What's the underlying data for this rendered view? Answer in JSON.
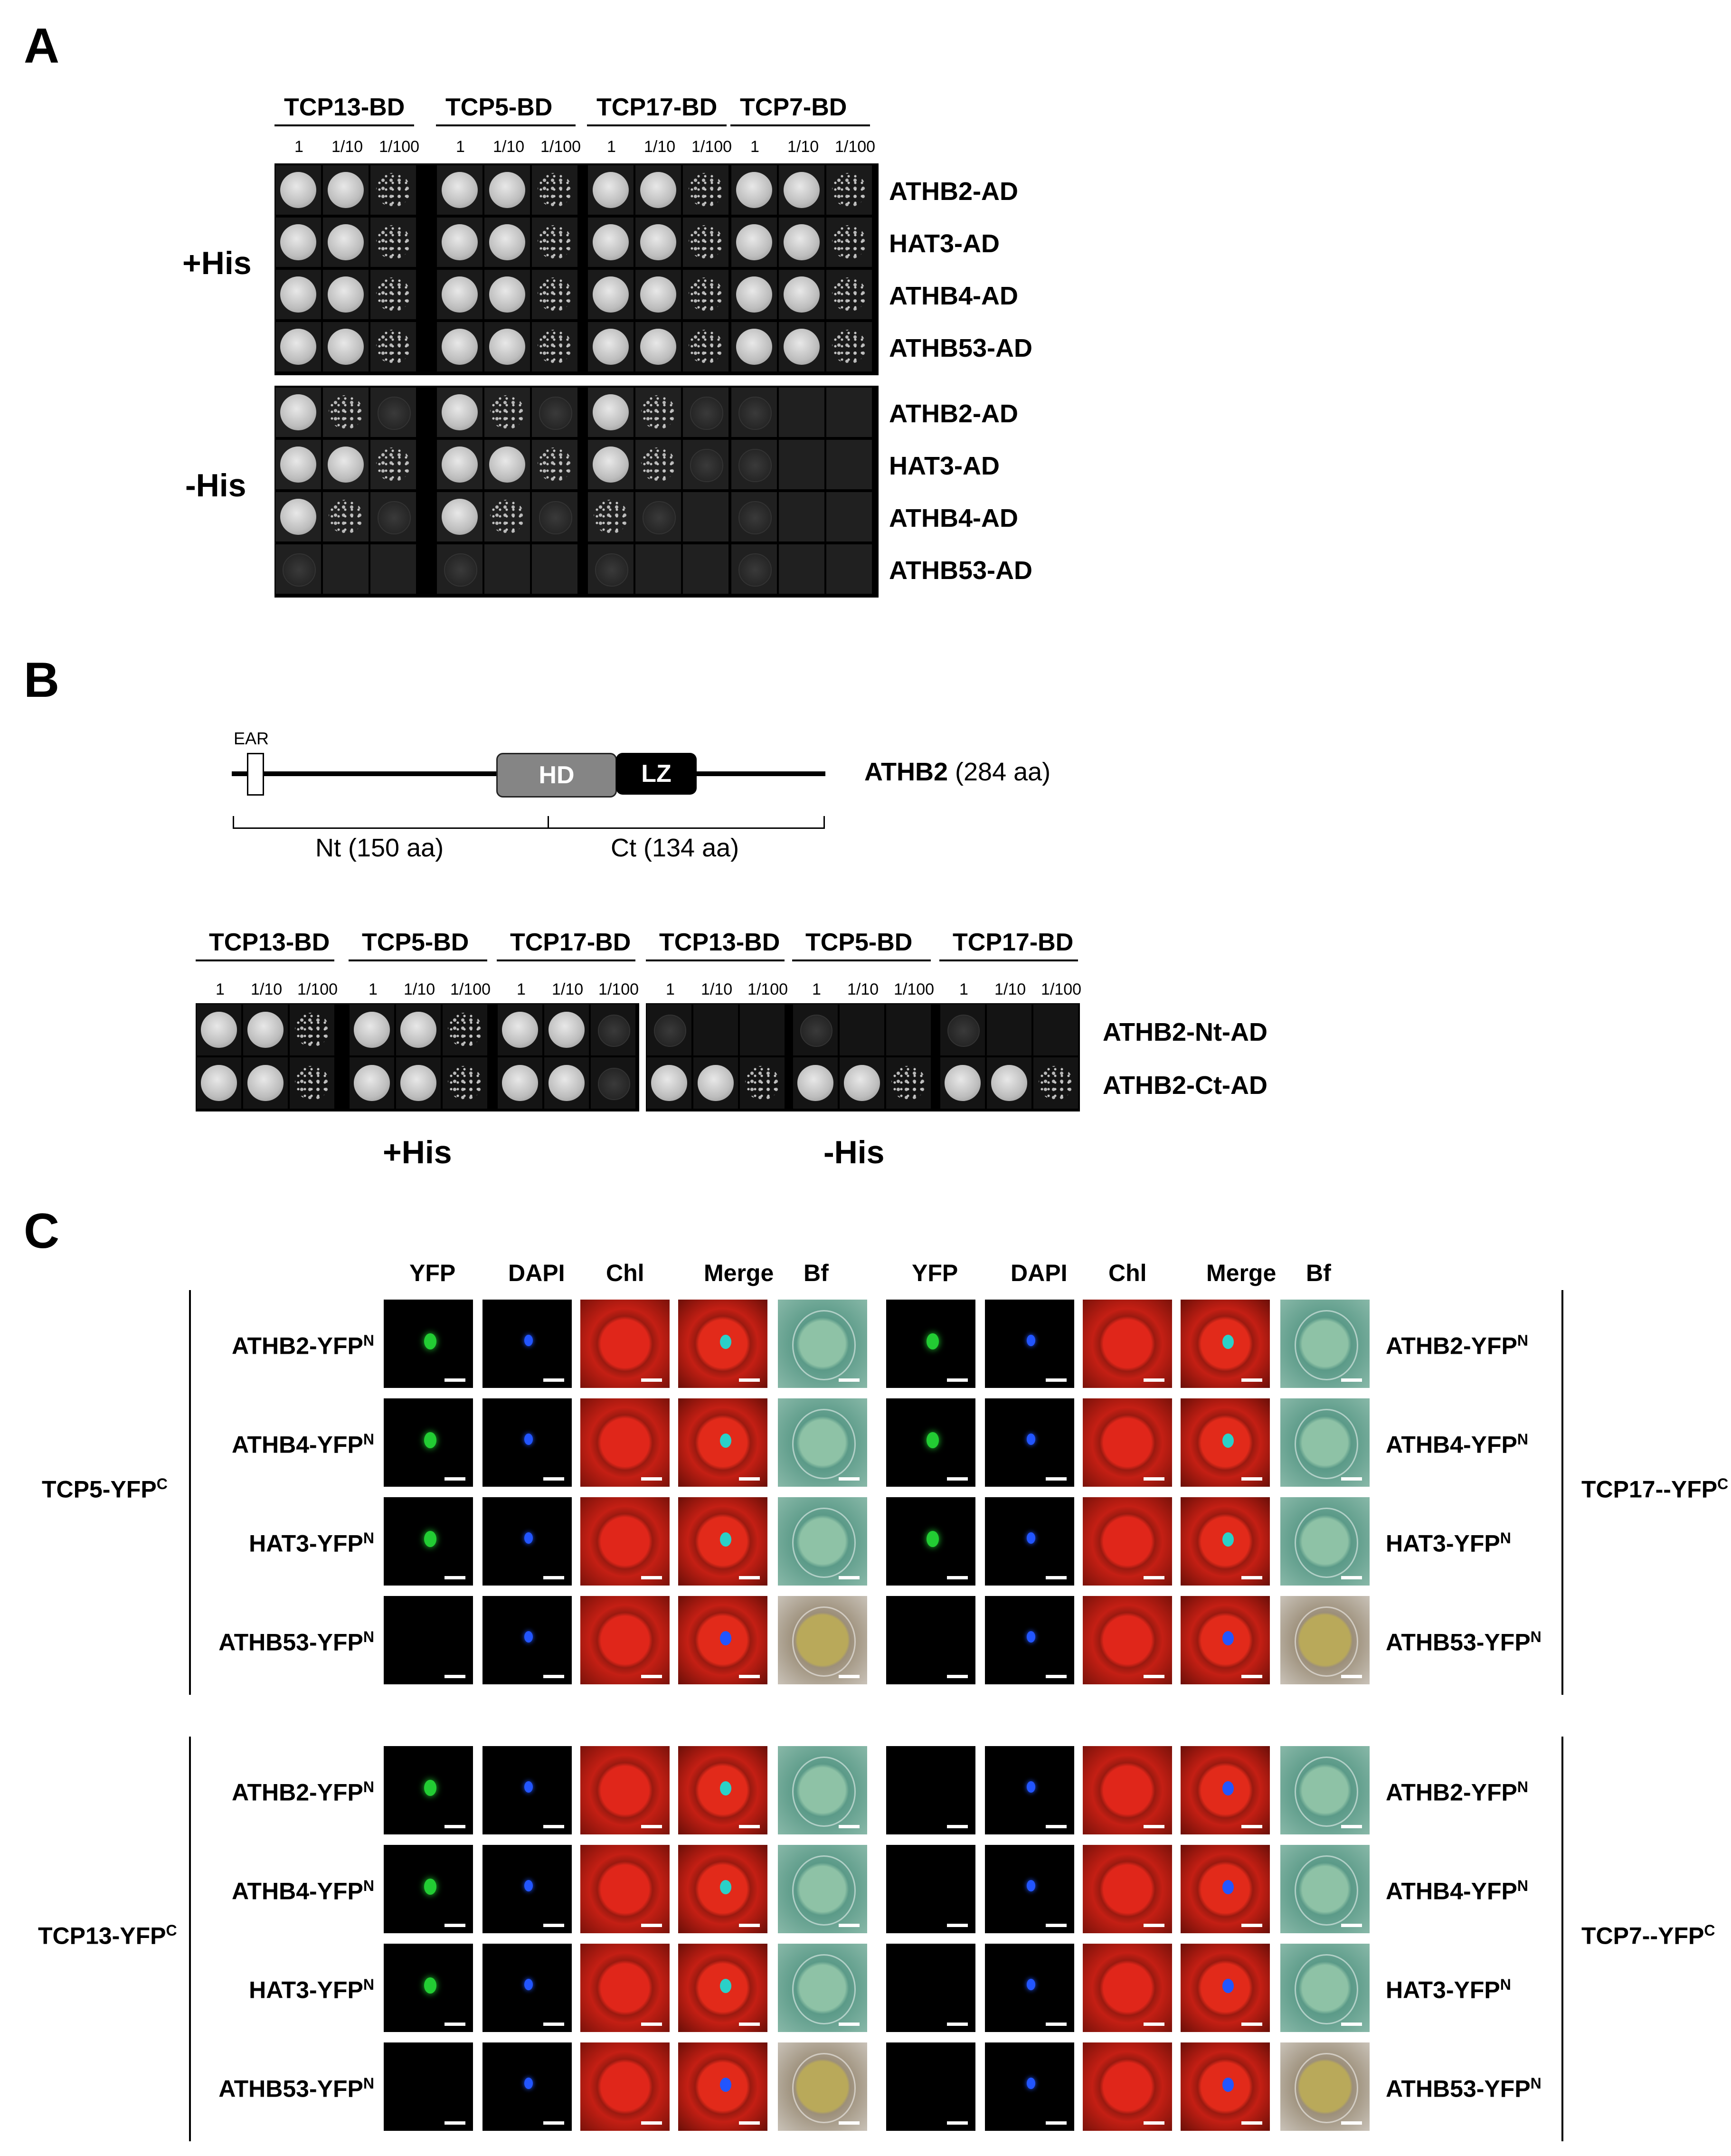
{
  "panelA": {
    "letter": "A",
    "bd_headers": [
      "TCP13-BD",
      "TCP5-BD",
      "TCP17-BD",
      "TCP7-BD"
    ],
    "dilutions": [
      "1",
      "1/10",
      "1/100"
    ],
    "conditions": [
      "+His",
      "-His"
    ],
    "ad_rows": [
      "ATHB2-AD",
      "HAT3-AD",
      "ATHB4-AD",
      "ATHB53-AD"
    ],
    "growth_plus_his": [
      [
        [
          3,
          3,
          2
        ],
        [
          3,
          3,
          2
        ],
        [
          3,
          3,
          2
        ],
        [
          3,
          3,
          2
        ]
      ],
      [
        [
          3,
          3,
          2
        ],
        [
          3,
          3,
          2
        ],
        [
          3,
          3,
          2
        ],
        [
          3,
          3,
          2
        ]
      ],
      [
        [
          3,
          3,
          2
        ],
        [
          3,
          3,
          2
        ],
        [
          3,
          3,
          2
        ],
        [
          3,
          3,
          2
        ]
      ],
      [
        [
          3,
          3,
          2
        ],
        [
          3,
          3,
          2
        ],
        [
          3,
          3,
          2
        ],
        [
          3,
          3,
          2
        ]
      ]
    ],
    "growth_minus_his": [
      [
        [
          3,
          2,
          1
        ],
        [
          3,
          2,
          1
        ],
        [
          3,
          2,
          1
        ],
        [
          1,
          0,
          0
        ]
      ],
      [
        [
          3,
          3,
          2
        ],
        [
          3,
          3,
          2
        ],
        [
          3,
          2,
          1
        ],
        [
          1,
          0,
          0
        ]
      ],
      [
        [
          3,
          2,
          1
        ],
        [
          3,
          2,
          1
        ],
        [
          2,
          1,
          0
        ],
        [
          1,
          0,
          0
        ]
      ],
      [
        [
          1,
          0,
          0
        ],
        [
          1,
          0,
          0
        ],
        [
          1,
          0,
          0
        ],
        [
          1,
          0,
          0
        ]
      ]
    ]
  },
  "panelB": {
    "letter": "B",
    "domain_labels": {
      "ear": "EAR",
      "hd": "HD",
      "lz": "LZ"
    },
    "protein_name": "ATHB2",
    "protein_length": "(284 aa)",
    "nt_label": "Nt (150 aa)",
    "ct_label": "Ct (134 aa)",
    "bd_headers": [
      "TCP13-BD",
      "TCP5-BD",
      "TCP17-BD",
      "TCP13-BD",
      "TCP5-BD",
      "TCP17-BD"
    ],
    "dilutions": [
      "1",
      "1/10",
      "1/100"
    ],
    "ad_rows": [
      "ATHB2-Nt-AD",
      "ATHB2-Ct-AD"
    ],
    "conditions": [
      "+His",
      "-His"
    ],
    "growth": [
      [
        [
          3,
          3,
          2
        ],
        [
          3,
          3,
          2
        ],
        [
          3,
          3,
          1
        ],
        [
          1,
          0,
          0
        ],
        [
          1,
          0,
          0
        ],
        [
          1,
          0,
          0
        ]
      ],
      [
        [
          3,
          3,
          2
        ],
        [
          3,
          3,
          2
        ],
        [
          3,
          3,
          1
        ],
        [
          3,
          3,
          2
        ],
        [
          3,
          3,
          2
        ],
        [
          3,
          3,
          2
        ]
      ]
    ]
  },
  "panelC": {
    "letter": "C",
    "channels": [
      "YFP",
      "DAPI",
      "Chl",
      "Merge",
      "Bf"
    ],
    "groups": [
      {
        "ycfp": "TCP5-YFP",
        "sup": "C",
        "side": "left"
      },
      {
        "ycfp": "TCP17--YFP",
        "sup": "C",
        "side": "right"
      },
      {
        "ycfp": "TCP13-YFP",
        "sup": "C",
        "side": "left"
      },
      {
        "ycfp": "TCP7--YFP",
        "sup": "C",
        "side": "right"
      }
    ],
    "rows": [
      {
        "name": "ATHB2-YFP",
        "sup": "N"
      },
      {
        "name": "ATHB4-YFP",
        "sup": "N"
      },
      {
        "name": "HAT3-YFP",
        "sup": "N"
      },
      {
        "name": "ATHB53-YFP",
        "sup": "N"
      }
    ],
    "yfp_signal": [
      [
        1,
        1,
        1,
        0
      ],
      [
        1,
        1,
        1,
        0
      ],
      [
        1,
        1,
        1,
        0
      ],
      [
        0,
        0,
        0,
        0
      ]
    ],
    "colors": {
      "yfp": "#22cc33",
      "dapi": "#2255ff",
      "chl": "#d41c12",
      "bf": "#6fa99a"
    }
  }
}
